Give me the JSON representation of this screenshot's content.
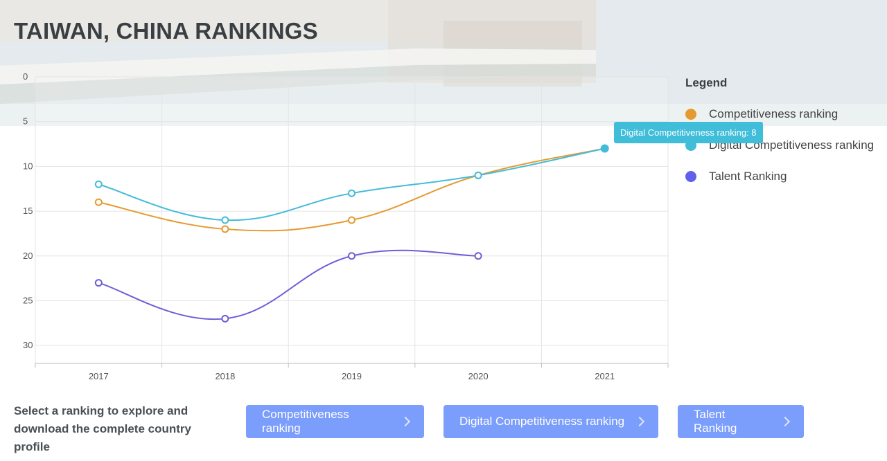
{
  "page": {
    "title": "TAIWAN, CHINA RANKINGS"
  },
  "chart_data": {
    "type": "line",
    "categories": [
      "2017",
      "2018",
      "2019",
      "2020",
      "2021"
    ],
    "y_ticks": [
      "0",
      "5",
      "10",
      "15",
      "20",
      "25",
      "30"
    ],
    "ylim": [
      0,
      32
    ],
    "y_reversed": true,
    "grid": true,
    "series": [
      {
        "name": "Competitiveness ranking",
        "values": [
          14,
          17,
          16,
          11,
          8
        ],
        "color": "#e69a2e"
      },
      {
        "name": "Digital Competitiveness ranking",
        "values": [
          12,
          16,
          13,
          11,
          8
        ],
        "color": "#43bcd8"
      },
      {
        "name": "Talent Ranking",
        "values": [
          23,
          27,
          20,
          20,
          null
        ],
        "color": "#6d5fd6"
      }
    ]
  },
  "legend": {
    "title": "Legend",
    "items": [
      {
        "label": "Competitiveness ranking",
        "color": "#e69a2e"
      },
      {
        "label": "Digital Competitiveness ranking",
        "color": "#43bcd8"
      },
      {
        "label": "Talent Ranking",
        "color": "#6060ec"
      }
    ]
  },
  "tooltip": {
    "text": "Digital Competitiveness ranking: 8"
  },
  "cta": {
    "text": "Select a ranking to explore and download the complete country profile",
    "buttons": [
      {
        "label": "Competitiveness ranking"
      },
      {
        "label": "Digital Competitiveness ranking"
      },
      {
        "label": "Talent Ranking"
      }
    ]
  }
}
